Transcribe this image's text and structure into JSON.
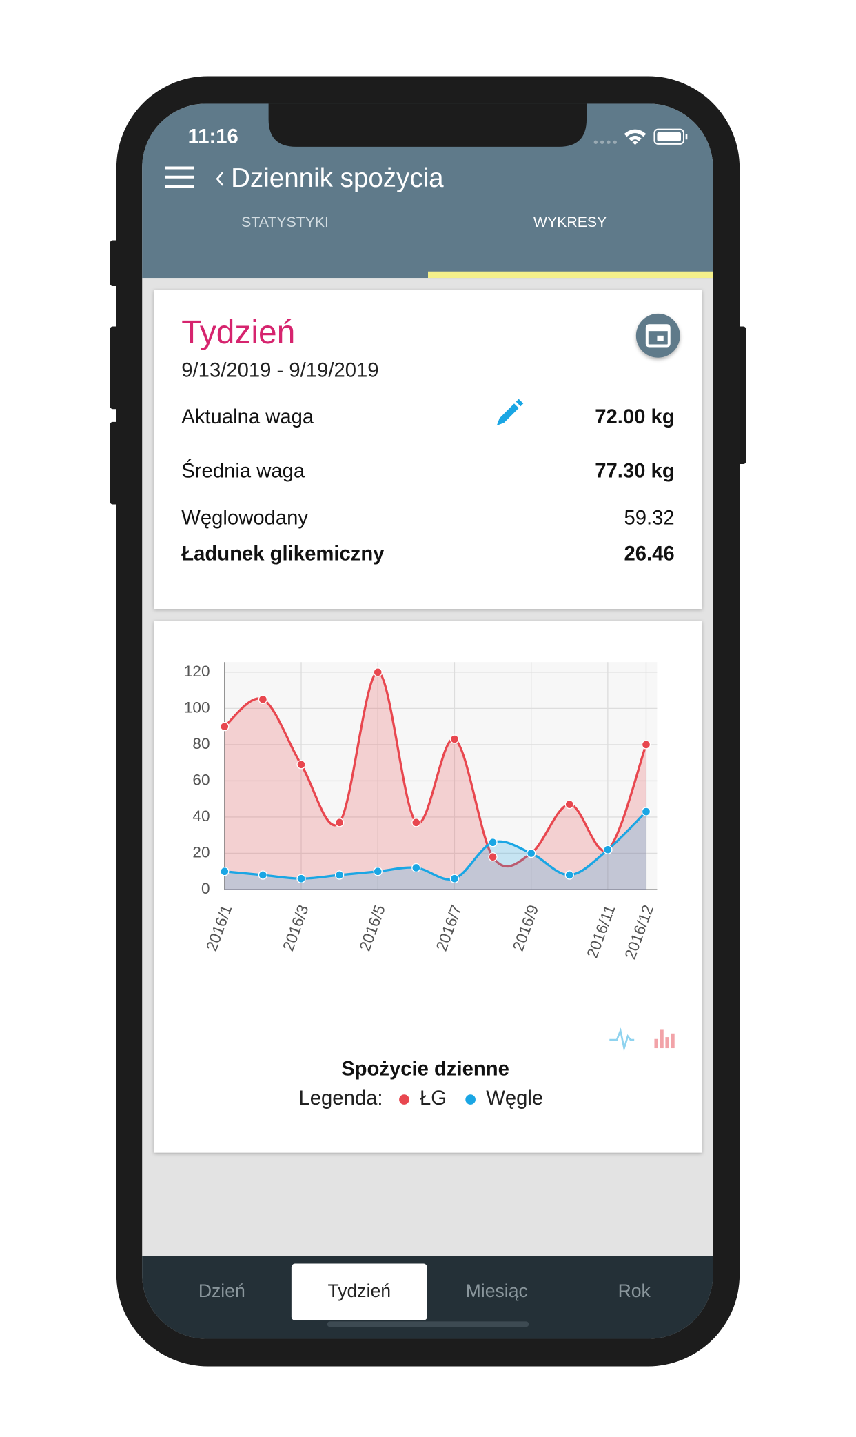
{
  "status_bar": {
    "time": "11:16"
  },
  "header": {
    "title": "Dziennik spożycia",
    "tabs": [
      "STATYSTYKI",
      "WYKRESY"
    ],
    "active_tab": 1
  },
  "summary": {
    "title": "Tydzień",
    "date_range": "9/13/2019 - 9/19/2019",
    "rows": [
      {
        "label": "Aktualna waga",
        "value": "72.00 kg",
        "bold_label": false,
        "bold_value": true
      },
      {
        "label": "Średnia waga",
        "value": "77.30 kg",
        "bold_label": false,
        "bold_value": true
      },
      {
        "label": "Węglowodany",
        "value": "59.32",
        "bold_label": false,
        "bold_value": false
      },
      {
        "label": "Ładunek glikemiczny",
        "value": "26.46",
        "bold_label": true,
        "bold_value": true
      }
    ]
  },
  "chart_data": {
    "type": "line",
    "title": "Spożycie dzienne",
    "legend_label": "Legenda:",
    "categories": [
      "2016/1",
      null,
      "2016/3",
      null,
      "2016/5",
      null,
      "2016/7",
      null,
      "2016/9",
      null,
      "2016/11",
      "2016/12"
    ],
    "series": [
      {
        "name": "ŁG",
        "color": "#e8474f",
        "values": [
          90,
          105,
          69,
          37,
          120,
          37,
          83,
          18,
          20,
          47,
          22,
          80
        ]
      },
      {
        "name": "Węgle",
        "color": "#1aa6e4",
        "values": [
          10,
          8,
          6,
          8,
          10,
          12,
          6,
          26,
          20,
          8,
          22,
          43
        ]
      }
    ],
    "ylim": [
      0,
      120
    ],
    "yticks": [
      0,
      20,
      40,
      60,
      80,
      100,
      120
    ],
    "grid": true
  },
  "bottom_tabs": {
    "items": [
      "Dzień",
      "Tydzień",
      "Miesiąc",
      "Rok"
    ],
    "active": 1
  }
}
